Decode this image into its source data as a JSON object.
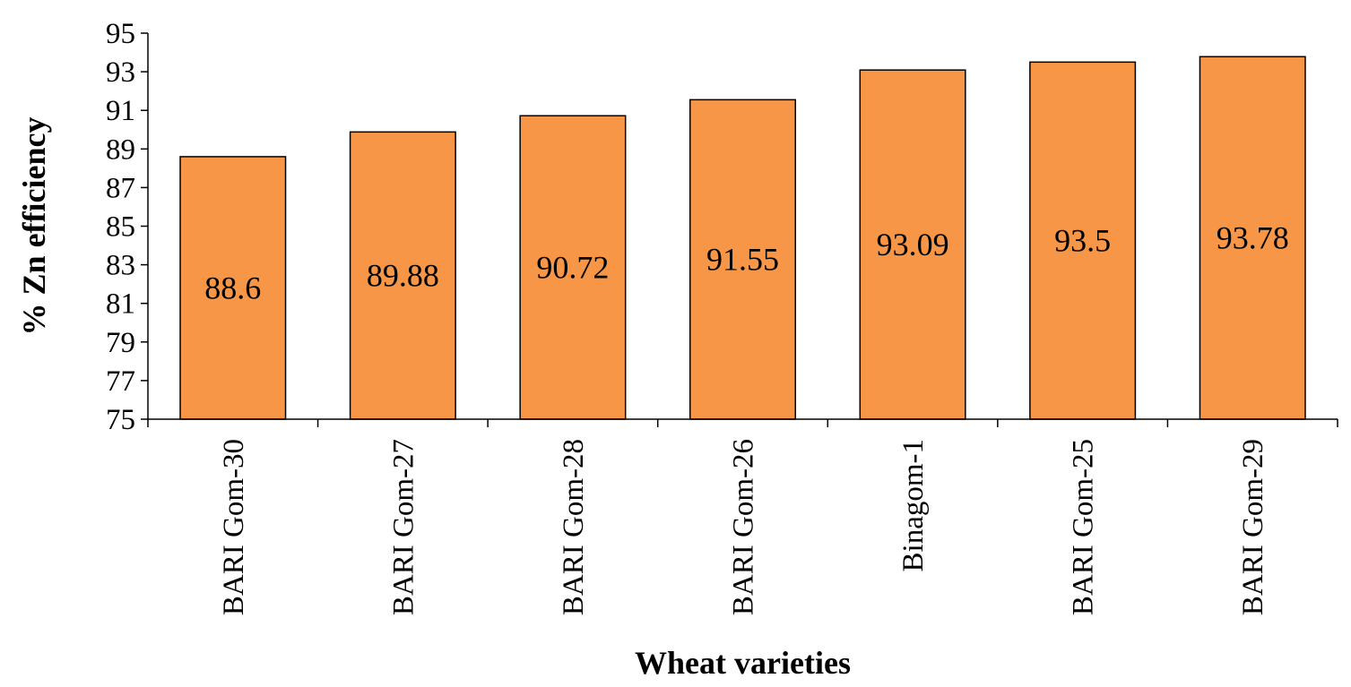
{
  "chart_data": {
    "type": "bar",
    "categories": [
      "BARI Gom-30",
      "BARI Gom-27",
      "BARI Gom-28",
      "BARI Gom-26",
      "Binagom-1",
      "BARI Gom-25",
      "BARI Gom-29"
    ],
    "values": [
      88.6,
      89.88,
      90.72,
      91.55,
      93.09,
      93.5,
      93.78
    ],
    "value_labels": [
      "88.6",
      "89.88",
      "90.72",
      "91.55",
      "93.09",
      "93.5",
      "93.78"
    ],
    "title": "",
    "xlabel": "Wheat varieties",
    "ylabel": "% Zn efficiency",
    "ylim": [
      75,
      95
    ],
    "yticks": [
      "75",
      "77",
      "79",
      "81",
      "83",
      "85",
      "87",
      "89",
      "91",
      "93",
      "95"
    ],
    "grid": false,
    "legend": "none",
    "colors": {
      "bar_fill": "#F79646",
      "bar_stroke": "#000000",
      "axis": "#000000"
    }
  }
}
